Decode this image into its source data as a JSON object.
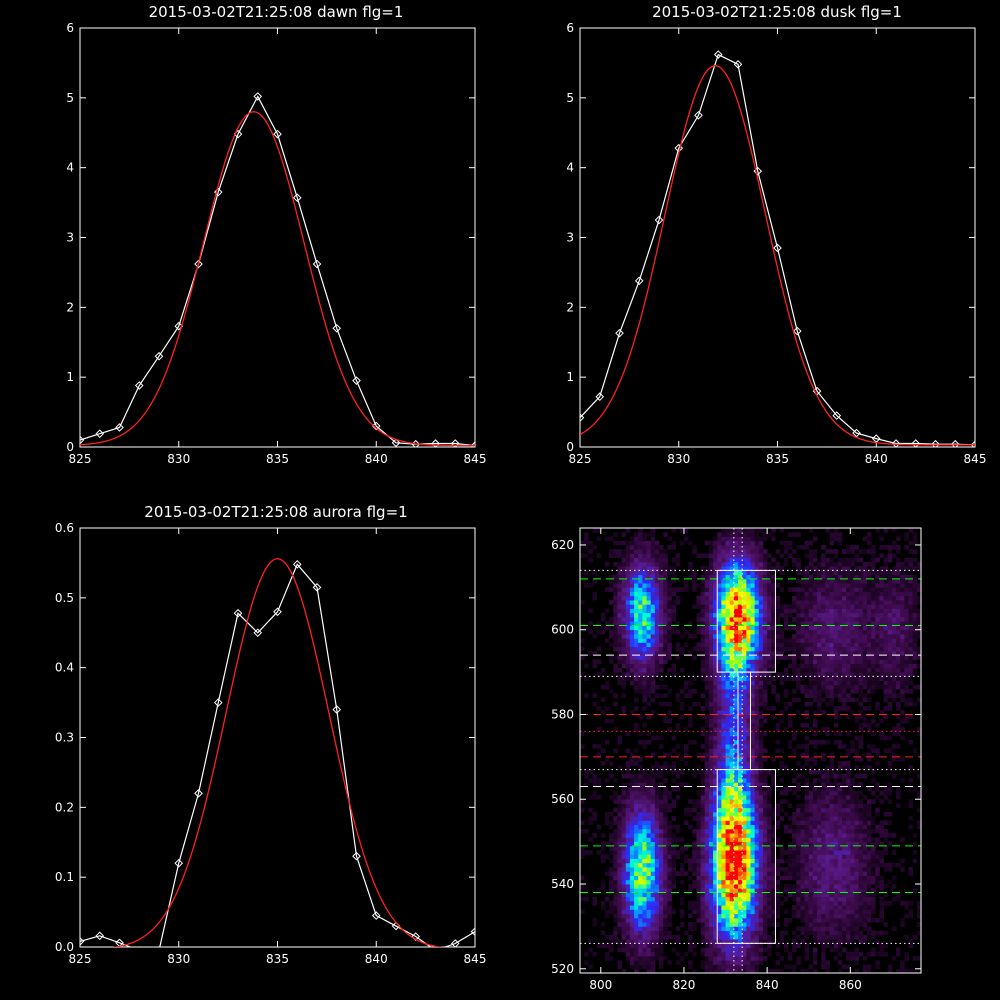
{
  "chart_data": [
    {
      "type": "line",
      "title": "2015-03-02T21:25:08 dawn flg=1",
      "xlim": [
        825,
        845
      ],
      "ylim": [
        0,
        6
      ],
      "xticks": [
        825,
        830,
        835,
        840,
        845
      ],
      "yticks": [
        0,
        1,
        2,
        3,
        4,
        5,
        6
      ],
      "grid": false,
      "series": [
        {
          "kind": "measured",
          "color": "#ffffff",
          "marker": "diamond",
          "x": [
            825,
            826,
            827,
            828,
            829,
            830,
            831,
            832,
            833,
            834,
            835,
            836,
            837,
            838,
            839,
            840,
            841,
            842,
            843,
            844,
            845
          ],
          "y": [
            0.1,
            0.19,
            0.28,
            0.88,
            1.3,
            1.73,
            2.62,
            3.65,
            4.48,
            5.02,
            4.48,
            3.57,
            2.62,
            1.7,
            0.95,
            0.3,
            0.06,
            0.04,
            0.05,
            0.05,
            0.02
          ]
        },
        {
          "kind": "fit",
          "color": "#ff2020",
          "shape": "gaussian",
          "amplitude": 4.78,
          "center": 833.8,
          "sigma": 2.55,
          "offset": 0.02
        }
      ]
    },
    {
      "type": "line",
      "title": "2015-03-02T21:25:08 dusk flg=1",
      "xlim": [
        825,
        845
      ],
      "ylim": [
        0,
        6
      ],
      "xticks": [
        825,
        830,
        835,
        840,
        845
      ],
      "yticks": [
        0,
        1,
        2,
        3,
        4,
        5,
        6
      ],
      "grid": false,
      "series": [
        {
          "kind": "measured",
          "color": "#ffffff",
          "marker": "diamond",
          "x": [
            825,
            826,
            827,
            828,
            829,
            830,
            831,
            832,
            833,
            834,
            835,
            836,
            837,
            838,
            839,
            840,
            841,
            842,
            843,
            844,
            845
          ],
          "y": [
            0.42,
            0.72,
            1.63,
            2.38,
            3.25,
            4.28,
            4.75,
            5.62,
            5.48,
            3.95,
            2.85,
            1.66,
            0.8,
            0.45,
            0.2,
            0.12,
            0.05,
            0.05,
            0.04,
            0.04,
            0.03
          ]
        },
        {
          "kind": "fit",
          "color": "#ff2020",
          "shape": "gaussian",
          "amplitude": 5.43,
          "center": 831.85,
          "sigma": 2.55,
          "offset": 0.03
        }
      ]
    },
    {
      "type": "line",
      "title": "2015-03-02T21:25:08 aurora flg=1",
      "xlim": [
        825,
        845
      ],
      "ylim": [
        0,
        0.6
      ],
      "xticks": [
        825,
        830,
        835,
        840,
        845
      ],
      "yticks": [
        0.0,
        0.1,
        0.2,
        0.3,
        0.4,
        0.5,
        0.6
      ],
      "ytick_labels": [
        "0.0",
        "0.1",
        "0.2",
        "0.3",
        "0.4",
        "0.5",
        "0.6"
      ],
      "grid": false,
      "series": [
        {
          "kind": "measured",
          "color": "#ffffff",
          "marker": "diamond",
          "x": [
            825,
            826,
            827,
            828,
            829,
            830,
            831,
            832,
            833,
            834,
            835,
            836,
            837,
            838,
            839,
            840,
            841,
            842,
            843,
            844,
            845
          ],
          "y": [
            0.008,
            0.016,
            0.006,
            -0.005,
            -0.005,
            0.12,
            0.22,
            0.35,
            0.478,
            0.45,
            0.48,
            0.548,
            0.515,
            0.34,
            0.13,
            0.045,
            0.03,
            0.015,
            -0.005,
            0.005,
            0.022
          ]
        },
        {
          "kind": "fit",
          "color": "#ff2020",
          "shape": "gaussian",
          "amplitude": 0.56,
          "center": 835.0,
          "sigma": 2.6,
          "offset": -0.004
        }
      ]
    },
    {
      "type": "heatmap",
      "title": "",
      "xlim": [
        795,
        877
      ],
      "ylim": [
        519,
        624
      ],
      "xticks": [
        800,
        820,
        840,
        860
      ],
      "yticks": [
        520,
        540,
        560,
        580,
        600,
        620
      ],
      "colormap": [
        "#000000",
        "#3c0a4a",
        "#5a1a88",
        "#2a2aff",
        "#00a8ff",
        "#00ffd0",
        "#aaff00",
        "#ffff00",
        "#ff8000",
        "#ff0000"
      ],
      "blobs": [
        {
          "x": 810,
          "y": 604,
          "sx": 3.2,
          "sy": 8,
          "amp": 0.55
        },
        {
          "x": 810,
          "y": 543,
          "sx": 3.2,
          "sy": 10,
          "amp": 0.62
        },
        {
          "x": 833,
          "y": 603,
          "sx": 3.8,
          "sy": 9,
          "amp": 0.85
        },
        {
          "x": 832,
          "y": 545,
          "sx": 3.8,
          "sy": 12,
          "amp": 0.98
        },
        {
          "x": 832,
          "y": 574,
          "sx": 3,
          "sy": 18,
          "amp": 0.3
        },
        {
          "x": 856,
          "y": 600,
          "sx": 6,
          "sy": 10,
          "amp": 0.16
        },
        {
          "x": 856,
          "y": 545,
          "sx": 6,
          "sy": 12,
          "amp": 0.18
        },
        {
          "x": 871,
          "y": 600,
          "sx": 4,
          "sy": 10,
          "amp": 0.12
        }
      ],
      "boxes": [
        {
          "x0": 828,
          "x1": 842,
          "y0": 590,
          "y1": 614
        },
        {
          "x0": 828,
          "x1": 842,
          "y0": 526,
          "y1": 567
        },
        {
          "x0": 833,
          "x1": 836,
          "y0": 567,
          "y1": 590
        }
      ],
      "vlines": [
        {
          "x": 832,
          "color": "#ffffff",
          "style": "dotted"
        },
        {
          "x": 834,
          "color": "#ffffff",
          "style": "dotted"
        }
      ],
      "hlines": [
        {
          "y": 612,
          "color": "#00ff00",
          "style": "dashed"
        },
        {
          "y": 601,
          "color": "#00ff00",
          "style": "dashed"
        },
        {
          "y": 549,
          "color": "#00ff00",
          "style": "dashed"
        },
        {
          "y": 538,
          "color": "#00ff00",
          "style": "dashed"
        },
        {
          "y": 594,
          "color": "#ffffff",
          "style": "dashed"
        },
        {
          "y": 563,
          "color": "#ffffff",
          "style": "dashed"
        },
        {
          "y": 580,
          "color": "#ff2020",
          "style": "dashed"
        },
        {
          "y": 570,
          "color": "#ff2020",
          "style": "dashed"
        },
        {
          "y": 614,
          "color": "#ffffff",
          "style": "dotted"
        },
        {
          "y": 589,
          "color": "#ffffff",
          "style": "dotted"
        },
        {
          "y": 576,
          "color": "#ff2020",
          "style": "dotted"
        },
        {
          "y": 567,
          "color": "#ffffff",
          "style": "dotted"
        },
        {
          "y": 526,
          "color": "#ffffff",
          "style": "dotted"
        }
      ]
    }
  ]
}
